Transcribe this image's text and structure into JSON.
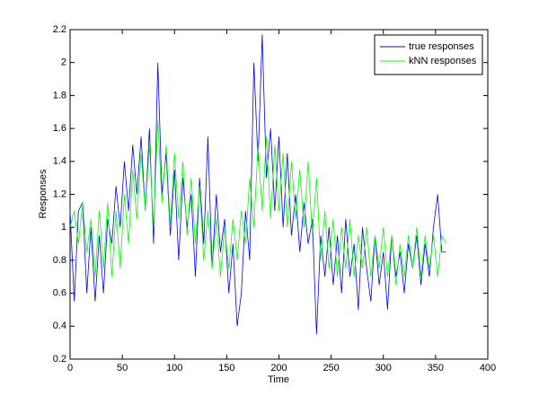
{
  "chart_data": {
    "type": "line",
    "xlabel": "Time",
    "ylabel": "Responses",
    "xlim": [
      0,
      400
    ],
    "xticks": [
      0,
      50,
      100,
      150,
      200,
      250,
      300,
      350,
      400
    ],
    "ylim": [
      0.2,
      2.2
    ],
    "yticks": [
      0.2,
      0.4,
      0.6,
      0.8,
      1,
      1.2,
      1.4,
      1.6,
      1.8,
      2,
      2.2
    ],
    "legend": "upper right",
    "x": [
      0,
      4,
      8,
      12,
      16,
      20,
      24,
      28,
      32,
      36,
      40,
      44,
      48,
      52,
      56,
      60,
      64,
      68,
      72,
      76,
      80,
      84,
      88,
      92,
      96,
      100,
      104,
      108,
      112,
      116,
      120,
      124,
      128,
      132,
      136,
      140,
      144,
      148,
      152,
      156,
      160,
      164,
      168,
      172,
      176,
      180,
      184,
      188,
      192,
      196,
      200,
      204,
      208,
      212,
      216,
      220,
      224,
      228,
      232,
      236,
      240,
      244,
      248,
      252,
      256,
      260,
      264,
      268,
      272,
      276,
      280,
      284,
      288,
      292,
      296,
      300,
      304,
      308,
      312,
      316,
      320,
      324,
      328,
      332,
      336,
      340,
      344,
      348,
      352,
      356,
      360
    ],
    "series": [
      {
        "name": "true responses",
        "color": "#0000ff",
        "values": [
          1.1,
          0.55,
          1.1,
          1.15,
          0.6,
          1.0,
          0.55,
          0.95,
          0.6,
          1.05,
          0.9,
          1.25,
          1.0,
          1.4,
          1.1,
          1.5,
          1.2,
          1.55,
          1.1,
          1.6,
          0.9,
          2.0,
          1.2,
          1.45,
          0.95,
          1.35,
          0.8,
          1.3,
          1.0,
          1.2,
          0.7,
          1.3,
          0.9,
          1.55,
          0.75,
          1.2,
          0.85,
          1.05,
          0.6,
          0.9,
          0.4,
          0.6,
          1.1,
          0.8,
          2.0,
          1.4,
          2.17,
          1.3,
          1.6,
          1.1,
          1.55,
          1.0,
          1.45,
          0.95,
          1.2,
          0.85,
          1.15,
          0.9,
          1.05,
          0.35,
          0.95,
          0.7,
          1.0,
          0.65,
          0.95,
          0.6,
          1.05,
          0.7,
          0.9,
          0.5,
          1.0,
          0.75,
          0.55,
          0.95,
          0.65,
          0.85,
          0.5,
          0.95,
          0.7,
          0.85,
          0.6,
          0.9,
          0.75,
          0.95,
          0.65,
          0.9,
          0.7,
          1.0,
          1.2,
          0.85,
          0.85
        ]
      },
      {
        "name": "kNN responses",
        "color": "#00ff00",
        "values": [
          1.0,
          1.1,
          0.9,
          1.15,
          0.85,
          1.05,
          0.7,
          1.1,
          0.75,
          1.15,
          0.7,
          1.1,
          0.75,
          1.2,
          0.9,
          1.35,
          1.05,
          1.45,
          1.1,
          1.5,
          1.0,
          1.65,
          1.15,
          1.5,
          1.0,
          1.45,
          1.05,
          1.4,
          0.95,
          1.3,
          0.9,
          1.25,
          0.8,
          1.1,
          0.75,
          1.05,
          0.7,
          1.0,
          0.75,
          1.05,
          0.8,
          1.1,
          0.9,
          1.3,
          1.0,
          1.5,
          1.1,
          1.55,
          1.05,
          1.5,
          1.1,
          1.45,
          1.0,
          1.4,
          1.05,
          1.35,
          1.0,
          1.4,
          0.95,
          1.3,
          0.8,
          1.1,
          0.75,
          1.05,
          0.7,
          1.0,
          0.75,
          1.05,
          0.7,
          0.95,
          0.75,
          1.0,
          0.7,
          0.95,
          0.75,
          1.0,
          0.7,
          0.95,
          0.65,
          0.9,
          0.7,
          0.95,
          0.75,
          1.0,
          0.7,
          0.95,
          0.75,
          0.95,
          0.7,
          0.95,
          0.9
        ]
      }
    ]
  }
}
